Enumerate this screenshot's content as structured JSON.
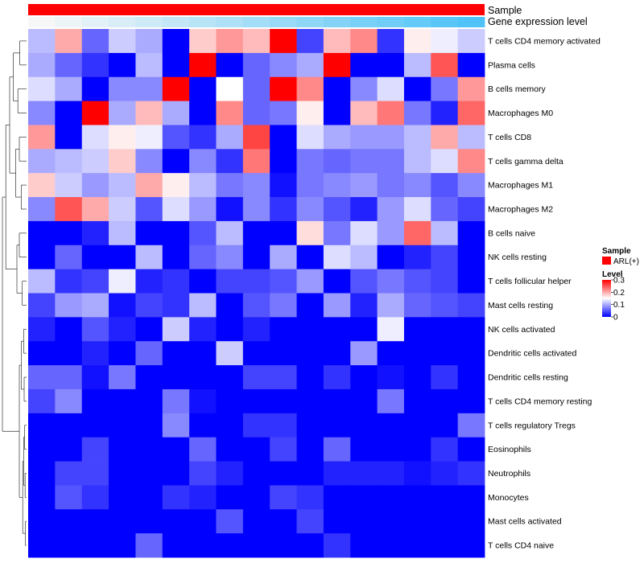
{
  "chart_data": {
    "type": "heatmap",
    "title": "",
    "annotations": [
      {
        "name": "Sample",
        "kind": "categorical",
        "color": "#FF0000",
        "value": "ARL(+)"
      },
      {
        "name": "Gene expression level",
        "kind": "gradient",
        "colors": [
          "#F7F7F7",
          "#4FC3F7"
        ]
      }
    ],
    "rows": [
      "T cells CD4 memory activated",
      "Plasma cells",
      "B cells memory",
      "Macrophages M0",
      "T cells CD8",
      "T cells gamma delta",
      "Macrophages M1",
      "Macrophages M2",
      "B cells naive",
      "NK cells resting",
      "T cells follicular helper",
      "Mast cells resting",
      "NK cells activated",
      "Dendritic cells activated",
      "Dendritic cells resting",
      "T cells CD4 memory resting",
      "T cells regulatory  Tregs",
      "Eosinophils",
      "Neutrophils",
      "Monocytes",
      "Mast cells activated",
      "T cells CD4 naive"
    ],
    "n_columns": 17,
    "values": [
      [
        0.11,
        0.2,
        0.06,
        0.12,
        0.1,
        0.0,
        0.18,
        0.21,
        0.19,
        0.3,
        0.04,
        0.19,
        0.22,
        0.03,
        0.16,
        0.14,
        0.12
      ],
      [
        0.1,
        0.06,
        0.03,
        0.0,
        0.11,
        0.0,
        0.3,
        0.0,
        0.06,
        0.08,
        0.1,
        0.3,
        0.0,
        0.0,
        0.11,
        0.25,
        0.0
      ],
      [
        0.13,
        0.1,
        0.0,
        0.08,
        0.08,
        0.3,
        0.0,
        0.15,
        0.06,
        0.3,
        0.22,
        0.0,
        0.08,
        0.13,
        0.0,
        0.07,
        0.21
      ],
      [
        0.08,
        0.0,
        0.3,
        0.1,
        0.19,
        0.1,
        0.0,
        0.22,
        0.06,
        0.07,
        0.16,
        0.0,
        0.19,
        0.23,
        0.07,
        0.02,
        0.24
      ],
      [
        0.21,
        0.0,
        0.13,
        0.16,
        0.14,
        0.05,
        0.03,
        0.1,
        0.26,
        0.0,
        0.13,
        0.1,
        0.09,
        0.09,
        0.11,
        0.2,
        0.11
      ],
      [
        0.1,
        0.11,
        0.12,
        0.18,
        0.08,
        0.0,
        0.08,
        0.03,
        0.23,
        0.0,
        0.07,
        0.06,
        0.07,
        0.07,
        0.11,
        0.13,
        0.22
      ],
      [
        0.18,
        0.12,
        0.09,
        0.11,
        0.2,
        0.16,
        0.11,
        0.07,
        0.08,
        0.01,
        0.07,
        0.08,
        0.09,
        0.07,
        0.08,
        0.05,
        0.08
      ],
      [
        0.08,
        0.25,
        0.2,
        0.12,
        0.05,
        0.13,
        0.09,
        0.01,
        0.08,
        0.03,
        0.08,
        0.05,
        0.02,
        0.09,
        0.13,
        0.06,
        0.04
      ],
      [
        0.0,
        0.0,
        0.02,
        0.11,
        0.0,
        0.0,
        0.05,
        0.11,
        0.0,
        0.0,
        0.17,
        0.07,
        0.13,
        0.09,
        0.24,
        0.11,
        0.0
      ],
      [
        0.0,
        0.06,
        0.0,
        0.0,
        0.11,
        0.0,
        0.06,
        0.08,
        0.0,
        0.1,
        0.0,
        0.13,
        0.11,
        0.0,
        0.02,
        0.04,
        0.0
      ],
      [
        0.11,
        0.03,
        0.04,
        0.14,
        0.02,
        0.03,
        0.0,
        0.04,
        0.04,
        0.05,
        0.09,
        0.0,
        0.05,
        0.07,
        0.05,
        0.04,
        0.0
      ],
      [
        0.04,
        0.09,
        0.1,
        0.01,
        0.04,
        0.03,
        0.11,
        0.0,
        0.05,
        0.07,
        0.0,
        0.09,
        0.02,
        0.1,
        0.06,
        0.05,
        0.04
      ],
      [
        0.02,
        0.0,
        0.05,
        0.02,
        0.0,
        0.12,
        0.02,
        0.0,
        0.02,
        0.0,
        0.0,
        0.0,
        0.0,
        0.14,
        0.0,
        0.0,
        0.0
      ],
      [
        0.0,
        0.0,
        0.02,
        0.0,
        0.06,
        0.0,
        0.0,
        0.12,
        0.0,
        0.0,
        0.0,
        0.0,
        0.09,
        0.0,
        0.0,
        0.0,
        0.0
      ],
      [
        0.06,
        0.06,
        0.01,
        0.07,
        0.0,
        0.0,
        0.0,
        0.0,
        0.04,
        0.04,
        0.0,
        0.03,
        0.0,
        0.01,
        0.0,
        0.03,
        0.0
      ],
      [
        0.04,
        0.08,
        0.0,
        0.0,
        0.0,
        0.07,
        0.01,
        0.0,
        0.0,
        0.0,
        0.0,
        0.0,
        0.0,
        0.07,
        0.0,
        0.0,
        0.0
      ],
      [
        0.0,
        0.0,
        0.0,
        0.0,
        0.0,
        0.08,
        0.0,
        0.0,
        0.03,
        0.03,
        0.0,
        0.0,
        0.0,
        0.0,
        0.0,
        0.0,
        0.07
      ],
      [
        0.0,
        0.0,
        0.04,
        0.0,
        0.0,
        0.0,
        0.06,
        0.0,
        0.0,
        0.04,
        0.0,
        0.06,
        0.0,
        0.0,
        0.0,
        0.03,
        0.0
      ],
      [
        0.0,
        0.04,
        0.04,
        0.0,
        0.0,
        0.0,
        0.04,
        0.02,
        0.0,
        0.0,
        0.0,
        0.02,
        0.02,
        0.02,
        0.01,
        0.02,
        0.03
      ],
      [
        0.0,
        0.05,
        0.03,
        0.0,
        0.0,
        0.03,
        0.02,
        0.0,
        0.0,
        0.04,
        0.03,
        0.0,
        0.0,
        0.0,
        0.0,
        0.0,
        0.0
      ],
      [
        0.0,
        0.0,
        0.0,
        0.0,
        0.0,
        0.0,
        0.0,
        0.05,
        0.0,
        0.0,
        0.04,
        0.0,
        0.0,
        0.0,
        0.0,
        0.0,
        0.0
      ],
      [
        0.0,
        0.0,
        0.0,
        0.0,
        0.06,
        0.0,
        0.0,
        0.0,
        0.0,
        0.0,
        0.0,
        0.03,
        0.0,
        0.0,
        0.0,
        0.0,
        0.0
      ]
    ],
    "color_scale": {
      "min": 0,
      "mid": 0.15,
      "max": 0.3,
      "low": "#0000FF",
      "midColor": "#FFFFFF",
      "high": "#FF0000"
    },
    "legend": {
      "sample_title": "Sample",
      "sample_entry": "ARL(+)",
      "level_title": "Level",
      "ticks": [
        0.3,
        0.2,
        0.1,
        0
      ],
      "tick_labels": [
        "0.3",
        "0.2",
        "0.1",
        "0"
      ]
    },
    "dendrogram": "row clustering tree on left"
  }
}
